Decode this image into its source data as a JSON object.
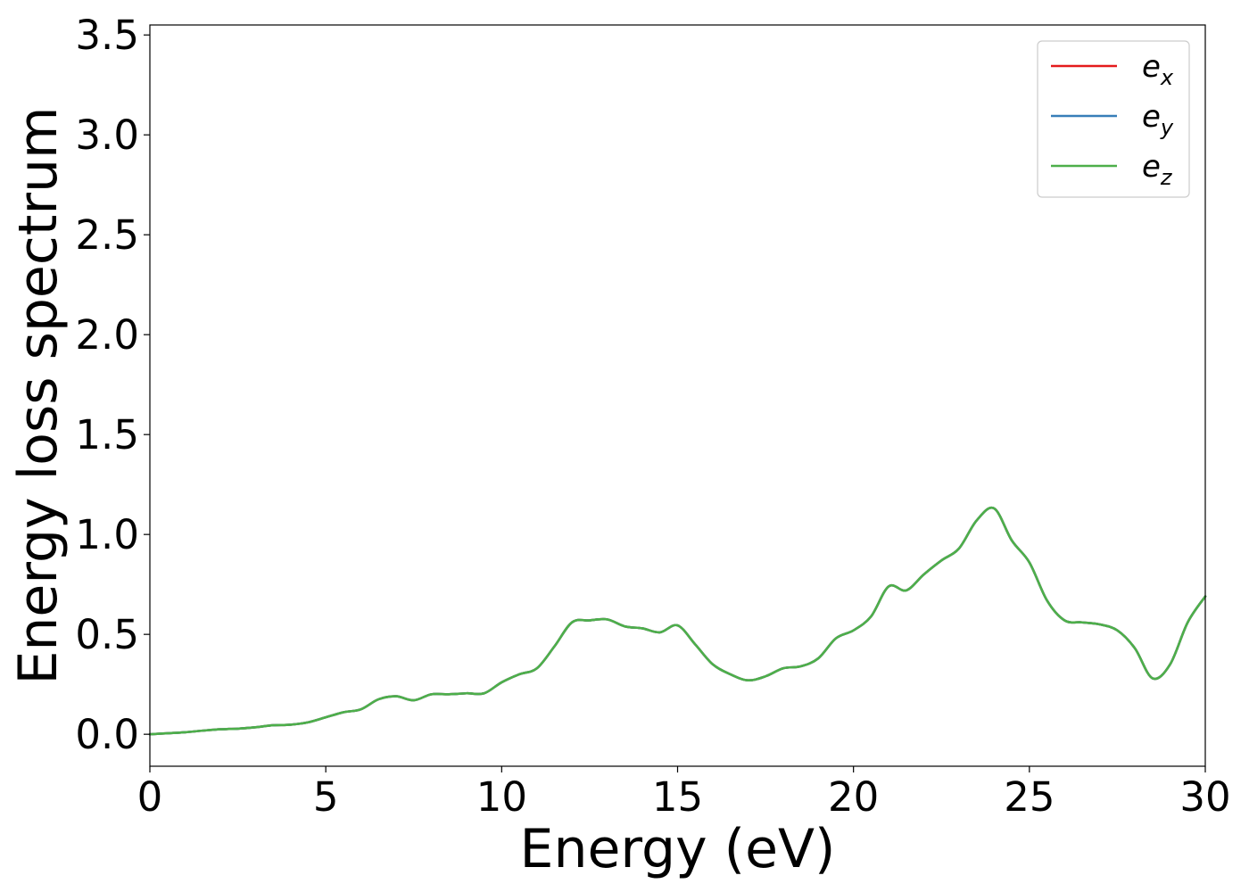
{
  "chart_data": {
    "type": "line",
    "xlabel": "Energy (eV)",
    "ylabel": "Energy loss spectrum",
    "xlim": [
      0,
      30
    ],
    "ylim": [
      -0.16,
      3.55
    ],
    "xticks": [
      0,
      5,
      10,
      15,
      20,
      25,
      30
    ],
    "xtick_labels": [
      "0",
      "5",
      "10",
      "15",
      "20",
      "25",
      "30"
    ],
    "yticks": [
      0.0,
      0.5,
      1.0,
      1.5,
      2.0,
      2.5,
      3.0,
      3.5
    ],
    "ytick_labels": [
      "0.0",
      "0.5",
      "1.0",
      "1.5",
      "2.0",
      "2.5",
      "3.0",
      "3.5"
    ],
    "grid": false,
    "legend_position": "top-right",
    "x": [
      0,
      0.5,
      1,
      1.5,
      2,
      2.5,
      3,
      3.5,
      4,
      4.5,
      5,
      5.5,
      6,
      6.5,
      7,
      7.5,
      8,
      8.5,
      9,
      9.5,
      10,
      10.5,
      11,
      11.5,
      12,
      12.5,
      13,
      13.5,
      14,
      14.5,
      15,
      15.5,
      16,
      16.5,
      17,
      17.5,
      18,
      18.5,
      19,
      19.5,
      20,
      20.5,
      21,
      21.5,
      22,
      22.5,
      23,
      23.5,
      24,
      24.5,
      25,
      25.5,
      26,
      26.5,
      27,
      27.5,
      28,
      28.5,
      29,
      29.5,
      30
    ],
    "series": [
      {
        "name": "e",
        "subscript": "x",
        "color": "#e41a1c",
        "values": [
          0.0,
          0.005,
          0.01,
          0.018,
          0.025,
          0.028,
          0.035,
          0.045,
          0.048,
          0.06,
          0.085,
          0.11,
          0.125,
          0.175,
          0.19,
          0.17,
          0.2,
          0.2,
          0.205,
          0.205,
          0.26,
          0.3,
          0.33,
          0.44,
          0.56,
          0.57,
          0.575,
          0.54,
          0.53,
          0.51,
          0.545,
          0.45,
          0.35,
          0.3,
          0.27,
          0.29,
          0.33,
          0.34,
          0.38,
          0.48,
          0.52,
          0.59,
          0.74,
          0.72,
          0.8,
          0.87,
          0.93,
          1.07,
          1.13,
          0.97,
          0.86,
          0.67,
          0.57,
          0.56,
          0.55,
          0.52,
          0.43,
          0.28,
          0.35,
          0.56,
          0.69
        ]
      },
      {
        "name": "e",
        "subscript": "y",
        "color": "#377eb8",
        "values": [
          0.0,
          0.005,
          0.01,
          0.018,
          0.025,
          0.028,
          0.035,
          0.045,
          0.048,
          0.06,
          0.085,
          0.11,
          0.125,
          0.175,
          0.19,
          0.17,
          0.2,
          0.2,
          0.205,
          0.205,
          0.26,
          0.3,
          0.33,
          0.44,
          0.56,
          0.57,
          0.575,
          0.54,
          0.53,
          0.51,
          0.545,
          0.45,
          0.35,
          0.3,
          0.27,
          0.29,
          0.33,
          0.34,
          0.38,
          0.48,
          0.52,
          0.59,
          0.74,
          0.72,
          0.8,
          0.87,
          0.93,
          1.07,
          1.13,
          0.97,
          0.86,
          0.67,
          0.57,
          0.56,
          0.55,
          0.52,
          0.43,
          0.28,
          0.35,
          0.56,
          0.69
        ]
      },
      {
        "name": "e",
        "subscript": "z",
        "color": "#4daf4a",
        "values": [
          0.0,
          0.005,
          0.01,
          0.018,
          0.025,
          0.028,
          0.035,
          0.045,
          0.048,
          0.06,
          0.085,
          0.11,
          0.125,
          0.175,
          0.19,
          0.17,
          0.2,
          0.2,
          0.205,
          0.205,
          0.26,
          0.3,
          0.33,
          0.44,
          0.56,
          0.57,
          0.575,
          0.54,
          0.53,
          0.51,
          0.545,
          0.45,
          0.35,
          0.3,
          0.27,
          0.29,
          0.33,
          0.34,
          0.38,
          0.48,
          0.52,
          0.59,
          0.74,
          0.72,
          0.8,
          0.87,
          0.93,
          1.07,
          1.13,
          0.97,
          0.86,
          0.67,
          0.57,
          0.56,
          0.55,
          0.52,
          0.43,
          0.28,
          0.35,
          0.56,
          0.69
        ]
      }
    ]
  }
}
